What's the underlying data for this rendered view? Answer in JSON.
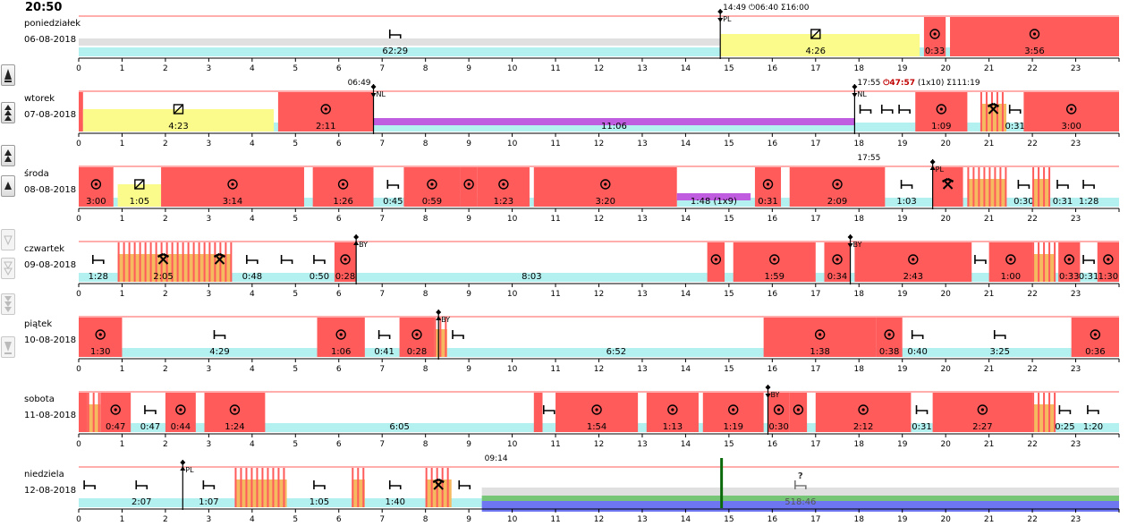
{
  "clock": "20:50",
  "tools": [
    {
      "name": "zoom-day-button",
      "enabled": true
    },
    {
      "name": "zoom-week-button",
      "enabled": true
    },
    {
      "name": "zoom-2day-button",
      "enabled": true
    },
    {
      "name": "zoom-up-button",
      "enabled": true
    },
    {
      "name": "zoom-down-button",
      "enabled": false
    },
    {
      "name": "zoom-down2-button",
      "enabled": false
    },
    {
      "name": "zoom-down-week-button",
      "enabled": false
    },
    {
      "name": "zoom-down-day-button",
      "enabled": false
    }
  ],
  "colors": {
    "drive": "#ff5b5b",
    "work": "#f5b95f",
    "avail": "#fbfb8c",
    "rest": "#b3f0f0",
    "ferry": "#c05cdf",
    "grey": "#e0e0e0",
    "green": "#77c677",
    "blue": "#6f76f2",
    "line": "#ff5b5b"
  },
  "days": [
    {
      "name": "poniedziałek",
      "date": "06-08-2018",
      "markers": [
        {
          "x": 14.8,
          "label": "PL",
          "dir": "down"
        }
      ],
      "topLabel": {
        "x": 14.8,
        "parts": [
          {
            "text": "14:49 "
          },
          {
            "text": "⏻06:40",
            "icon": "clock-icon"
          },
          {
            "text": " Σ16:00"
          }
        ]
      },
      "blocks": [
        {
          "t": "rest",
          "s": 0,
          "e": 14.8,
          "label": "62:29",
          "icon": "bed",
          "ix": 7.3
        },
        {
          "t": "avail",
          "s": 14.8,
          "e": 19.4,
          "label": "4:26",
          "icon": "box",
          "ix": 17.0
        },
        {
          "t": "drive",
          "s": 19.5,
          "e": 20.0,
          "label": "0:33",
          "icon": "wheel"
        },
        {
          "t": "rest",
          "s": 20.0,
          "e": 20.1,
          "icon": "bed",
          "ix": 20.25
        },
        {
          "t": "drive",
          "s": 20.1,
          "e": 24.0,
          "label": "3:56",
          "icon": "wheel"
        }
      ]
    },
    {
      "name": "wtorek",
      "date": "07-08-2018",
      "markers": [
        {
          "x": 6.8,
          "label": "NL",
          "dir": "down"
        },
        {
          "x": 17.9,
          "label": "NL",
          "dir": "down"
        }
      ],
      "topLabel": {
        "x": 17.9,
        "parts": [
          {
            "text": "17:55 "
          },
          {
            "text": "⏻47:57",
            "icon": "clock-icon",
            "red": true
          },
          {
            "text": " (1x10) Σ111:19"
          }
        ]
      },
      "leftLabel": {
        "x": 6.8,
        "text": "06:49"
      },
      "blocks": [
        {
          "t": "drive",
          "s": 0,
          "e": 0.1
        },
        {
          "t": "avail",
          "s": 0.1,
          "e": 4.5,
          "label": "4:23",
          "icon": "box"
        },
        {
          "t": "drive",
          "s": 4.6,
          "e": 6.8,
          "label": "2:11",
          "icon": "wheel"
        },
        {
          "t": "ferry",
          "s": 6.8,
          "e": 17.9,
          "label": "11:06"
        },
        {
          "t": "rest",
          "s": 17.9,
          "e": 18.4,
          "icon": "bed"
        },
        {
          "t": "rest",
          "s": 18.4,
          "e": 18.9,
          "icon": "bed"
        },
        {
          "t": "rest",
          "s": 18.9,
          "e": 19.2,
          "icon": "bed"
        },
        {
          "t": "drive",
          "s": 19.3,
          "e": 20.5,
          "label": "1:09",
          "icon": "wheel"
        },
        {
          "t": "work",
          "s": 20.8,
          "e": 21.4,
          "icon": "tools"
        },
        {
          "t": "rest",
          "s": 21.4,
          "e": 21.8,
          "label": "0:31",
          "icon": "bed"
        },
        {
          "t": "drive",
          "s": 21.8,
          "e": 24.0,
          "label": "3:00",
          "icon": "wheel"
        }
      ]
    },
    {
      "name": "środa",
      "date": "08-08-2018",
      "markers": [
        {
          "x": 19.7,
          "label": "PL",
          "dir": "up"
        }
      ],
      "topLabel": {
        "x": 17.9,
        "parts": [
          {
            "text": "17:55"
          }
        ]
      },
      "blocks": [
        {
          "t": "drive",
          "s": 0,
          "e": 0.8,
          "label": "3:00",
          "icon": "wheel"
        },
        {
          "t": "avail",
          "s": 0.9,
          "e": 1.9,
          "label": "1:05",
          "icon": "box"
        },
        {
          "t": "drive",
          "s": 1.9,
          "e": 5.2,
          "label": "3:14",
          "icon": "wheel"
        },
        {
          "t": "drive",
          "s": 5.4,
          "e": 6.8,
          "label": "1:26",
          "icon": "wheel"
        },
        {
          "t": "rest",
          "s": 7.0,
          "e": 7.5,
          "label": "0:45",
          "icon": "bed"
        },
        {
          "t": "drive",
          "s": 7.5,
          "e": 8.8,
          "label": "0:59",
          "icon": "wheel"
        },
        {
          "t": "drive",
          "s": 8.8,
          "e": 9.2,
          "icon": "wheel"
        },
        {
          "t": "drive",
          "s": 9.2,
          "e": 10.4,
          "label": "1:23",
          "icon": "wheel"
        },
        {
          "t": "drive",
          "s": 10.5,
          "e": 13.8,
          "label": "3:20",
          "icon": "wheel"
        },
        {
          "t": "ferry",
          "s": 13.8,
          "e": 15.5,
          "label": "1:48 (1x9)"
        },
        {
          "t": "drive",
          "s": 15.6,
          "e": 16.2,
          "label": "0:31",
          "icon": "wheel"
        },
        {
          "t": "drive",
          "s": 16.4,
          "e": 18.6,
          "label": "2:09",
          "icon": "wheel"
        },
        {
          "t": "rest",
          "s": 18.6,
          "e": 19.6,
          "label": "1:03",
          "icon": "bed"
        },
        {
          "t": "drive",
          "s": 19.7,
          "e": 20.4,
          "icon": "tools"
        },
        {
          "t": "rest",
          "s": 20.4,
          "e": 20.5,
          "icon": "bed"
        },
        {
          "t": "work",
          "s": 20.5,
          "e": 21.4
        },
        {
          "t": "rest",
          "s": 21.4,
          "e": 21.6,
          "icon": "bed"
        },
        {
          "t": "rest",
          "s": 21.6,
          "e": 22.0,
          "label": "0:30",
          "icon": "bed"
        },
        {
          "t": "work",
          "s": 22.0,
          "e": 22.4
        },
        {
          "t": "rest",
          "s": 22.4,
          "e": 23.0,
          "label": "0:31",
          "icon": "bed"
        },
        {
          "t": "rest",
          "s": 23.0,
          "e": 23.6,
          "label": "1:28",
          "icon": "bed"
        }
      ]
    },
    {
      "name": "czwartek",
      "date": "09-08-2018",
      "markers": [
        {
          "x": 6.4,
          "label": "BY",
          "dir": "up"
        },
        {
          "x": 17.8,
          "label": "BY",
          "dir": "down"
        }
      ],
      "blocks": [
        {
          "t": "rest",
          "s": 0,
          "e": 0.9,
          "label": "1:28",
          "icon": "bed"
        },
        {
          "t": "work",
          "s": 0.9,
          "e": 3.0,
          "label": "2:05",
          "icon": "tools"
        },
        {
          "t": "work",
          "s": 3.0,
          "e": 3.5,
          "icon": "tools"
        },
        {
          "t": "rest",
          "s": 3.6,
          "e": 4.4,
          "label": "0:48",
          "icon": "bed"
        },
        {
          "t": "rest",
          "s": 4.5,
          "e": 5.1,
          "icon": "bed"
        },
        {
          "t": "rest",
          "s": 5.2,
          "e": 5.9,
          "label": "0:50",
          "icon": "bed"
        },
        {
          "t": "drive",
          "s": 5.9,
          "e": 6.4,
          "label": "0:28",
          "icon": "wheel"
        },
        {
          "t": "rest",
          "s": 6.4,
          "e": 14.5,
          "label": "8:03"
        },
        {
          "t": "drive",
          "s": 14.5,
          "e": 14.9,
          "icon": "wheel"
        },
        {
          "t": "drive",
          "s": 15.1,
          "e": 17.0,
          "label": "1:59",
          "icon": "wheel"
        },
        {
          "t": "drive",
          "s": 17.2,
          "e": 17.8,
          "label": "0:34",
          "icon": "wheel"
        },
        {
          "t": "drive",
          "s": 17.9,
          "e": 20.6,
          "label": "2:43",
          "icon": "wheel"
        },
        {
          "t": "rest",
          "s": 20.6,
          "e": 21.0,
          "icon": "bed"
        },
        {
          "t": "drive",
          "s": 21.0,
          "e": 22.0,
          "label": "1:00",
          "icon": "wheel"
        },
        {
          "t": "work",
          "s": 22.0,
          "e": 22.5
        },
        {
          "t": "drive",
          "s": 22.6,
          "e": 23.1,
          "label": "0:33",
          "icon": "wheel"
        },
        {
          "t": "rest",
          "s": 23.1,
          "e": 23.5,
          "label": "0:31",
          "icon": "bed"
        },
        {
          "t": "drive",
          "s": 23.5,
          "e": 24.0,
          "label": "1:30",
          "icon": "wheel"
        }
      ]
    },
    {
      "name": "piątek",
      "date": "10-08-2018",
      "markers": [
        {
          "x": 8.3,
          "label": "BY",
          "dir": "up"
        }
      ],
      "blocks": [
        {
          "t": "drive",
          "s": 0,
          "e": 1.0,
          "label": "1:30",
          "icon": "wheel"
        },
        {
          "t": "rest",
          "s": 1.0,
          "e": 5.5,
          "label": "4:29",
          "icon": "bed"
        },
        {
          "t": "drive",
          "s": 5.5,
          "e": 6.6,
          "label": "1:06",
          "icon": "wheel"
        },
        {
          "t": "rest",
          "s": 6.7,
          "e": 7.4,
          "label": "0:41",
          "icon": "bed"
        },
        {
          "t": "drive",
          "s": 7.4,
          "e": 8.2,
          "label": "0:28",
          "icon": "wheel"
        },
        {
          "t": "work",
          "s": 8.2,
          "e": 8.5
        },
        {
          "t": "rest",
          "s": 8.6,
          "e": 8.9,
          "icon": "bed"
        },
        {
          "t": "rest",
          "s": 9.0,
          "e": 15.8,
          "label": "6:52"
        },
        {
          "t": "drive",
          "s": 15.8,
          "e": 18.4,
          "label": "1:38",
          "icon": "wheel"
        },
        {
          "t": "drive",
          "s": 18.4,
          "e": 19.0,
          "label": "0:38",
          "icon": "wheel"
        },
        {
          "t": "rest",
          "s": 19.1,
          "e": 19.6,
          "label": "0:40",
          "icon": "bed"
        },
        {
          "t": "rest",
          "s": 19.6,
          "e": 22.9,
          "label": "3:25",
          "icon": "bed"
        },
        {
          "t": "drive",
          "s": 22.9,
          "e": 24.0,
          "label": "0:36",
          "icon": "wheel"
        }
      ]
    },
    {
      "name": "sobota",
      "date": "11-08-2018",
      "markers": [
        {
          "x": 15.9,
          "label": "BY",
          "dir": "down"
        }
      ],
      "blocks": [
        {
          "t": "drive",
          "s": 0,
          "e": 0.2
        },
        {
          "t": "work",
          "s": 0.2,
          "e": 0.5
        },
        {
          "t": "drive",
          "s": 0.5,
          "e": 1.2,
          "label": "0:47",
          "icon": "wheel"
        },
        {
          "t": "rest",
          "s": 1.3,
          "e": 2.0,
          "label": "0:47",
          "icon": "bed"
        },
        {
          "t": "drive",
          "s": 2.0,
          "e": 2.7,
          "label": "0:44",
          "icon": "wheel"
        },
        {
          "t": "drive",
          "s": 2.9,
          "e": 4.3,
          "label": "1:24",
          "icon": "wheel"
        },
        {
          "t": "rest",
          "s": 4.3,
          "e": 10.5,
          "label": "6:05"
        },
        {
          "t": "drive",
          "s": 10.5,
          "e": 10.7
        },
        {
          "t": "rest",
          "s": 10.7,
          "e": 11.0,
          "icon": "bed"
        },
        {
          "t": "drive",
          "s": 11.0,
          "e": 12.9,
          "label": "1:54",
          "icon": "wheel"
        },
        {
          "t": "drive",
          "s": 13.1,
          "e": 14.3,
          "label": "1:13",
          "icon": "wheel"
        },
        {
          "t": "drive",
          "s": 14.4,
          "e": 15.8,
          "label": "1:19",
          "icon": "wheel"
        },
        {
          "t": "drive",
          "s": 15.9,
          "e": 16.4,
          "label": "0:30",
          "icon": "wheel"
        },
        {
          "t": "drive",
          "s": 16.4,
          "e": 16.8,
          "icon": "wheel"
        },
        {
          "t": "rest",
          "s": 16.8,
          "e": 17.0
        },
        {
          "t": "drive",
          "s": 17.0,
          "e": 19.2,
          "label": "2:12",
          "icon": "wheel"
        },
        {
          "t": "rest",
          "s": 19.2,
          "e": 19.7,
          "label": "0:31",
          "icon": "bed"
        },
        {
          "t": "drive",
          "s": 19.7,
          "e": 22.0,
          "label": "2:27",
          "icon": "wheel"
        },
        {
          "t": "work",
          "s": 22.0,
          "e": 22.5
        },
        {
          "t": "rest",
          "s": 22.5,
          "e": 23.0,
          "label": "0:25",
          "icon": "bed"
        },
        {
          "t": "rest",
          "s": 23.0,
          "e": 23.8,
          "label": "1:20",
          "icon": "bed"
        }
      ]
    },
    {
      "name": "niedziela",
      "date": "12-08-2018",
      "markers": [
        {
          "x": 2.4,
          "label": "PL",
          "dir": "up"
        }
      ],
      "topLabel": {
        "x": 9.3,
        "parts": [
          {
            "text": "09:14"
          }
        ]
      },
      "blocks": [
        {
          "t": "rest",
          "s": 0,
          "e": 0.5,
          "icon": "bed"
        },
        {
          "t": "rest",
          "s": 0.5,
          "e": 2.4,
          "label": "2:07",
          "icon": "bed"
        },
        {
          "t": "rest",
          "s": 2.4,
          "e": 3.6,
          "label": "1:07",
          "icon": "bed"
        },
        {
          "t": "work",
          "s": 3.6,
          "e": 4.8
        },
        {
          "t": "rest",
          "s": 4.8,
          "e": 6.3,
          "label": "1:05",
          "icon": "bed"
        },
        {
          "t": "work",
          "s": 6.3,
          "e": 6.6
        },
        {
          "t": "rest",
          "s": 6.6,
          "e": 8.0,
          "label": "1:40",
          "icon": "bed"
        },
        {
          "t": "work",
          "s": 8.0,
          "e": 8.6,
          "icon": "tools"
        },
        {
          "t": "rest",
          "s": 8.6,
          "e": 9.2,
          "icon": "bed"
        },
        {
          "t": "future",
          "s": 9.3,
          "e": 24.0,
          "label": "518:46",
          "icon": "bed-q"
        }
      ]
    }
  ]
}
